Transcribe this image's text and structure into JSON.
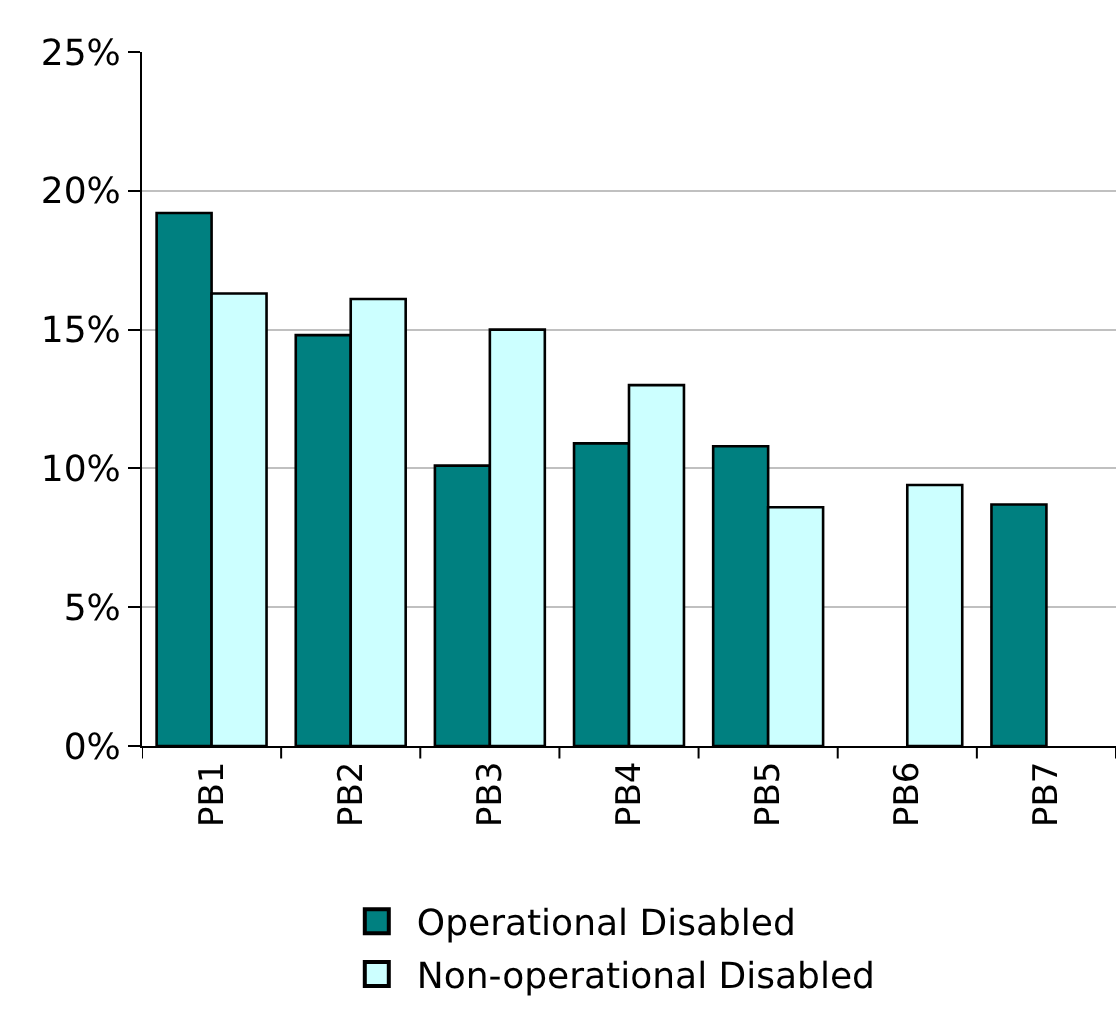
{
  "chart_data": {
    "type": "bar",
    "categories": [
      "PB1",
      "PB2",
      "PB3",
      "PB4",
      "PB5",
      "PB6",
      "PB7"
    ],
    "series": [
      {
        "name": "Operational Disabled",
        "color": "#008080",
        "values": [
          19.2,
          14.8,
          10.1,
          10.9,
          10.8,
          null,
          8.7
        ]
      },
      {
        "name": "Non-operational Disabled",
        "color": "#ccffff",
        "values": [
          16.3,
          16.1,
          15.0,
          13.0,
          8.6,
          9.4,
          null
        ]
      }
    ],
    "ylim": [
      0,
      25
    ],
    "yticks": [
      {
        "value": 0,
        "label": "0%"
      },
      {
        "value": 5,
        "label": "5%"
      },
      {
        "value": 10,
        "label": "10%"
      },
      {
        "value": 15,
        "label": "15%"
      },
      {
        "value": 20,
        "label": "20%"
      },
      {
        "value": 25,
        "label": "25%"
      }
    ],
    "grid": "y",
    "legend": "bottom"
  }
}
